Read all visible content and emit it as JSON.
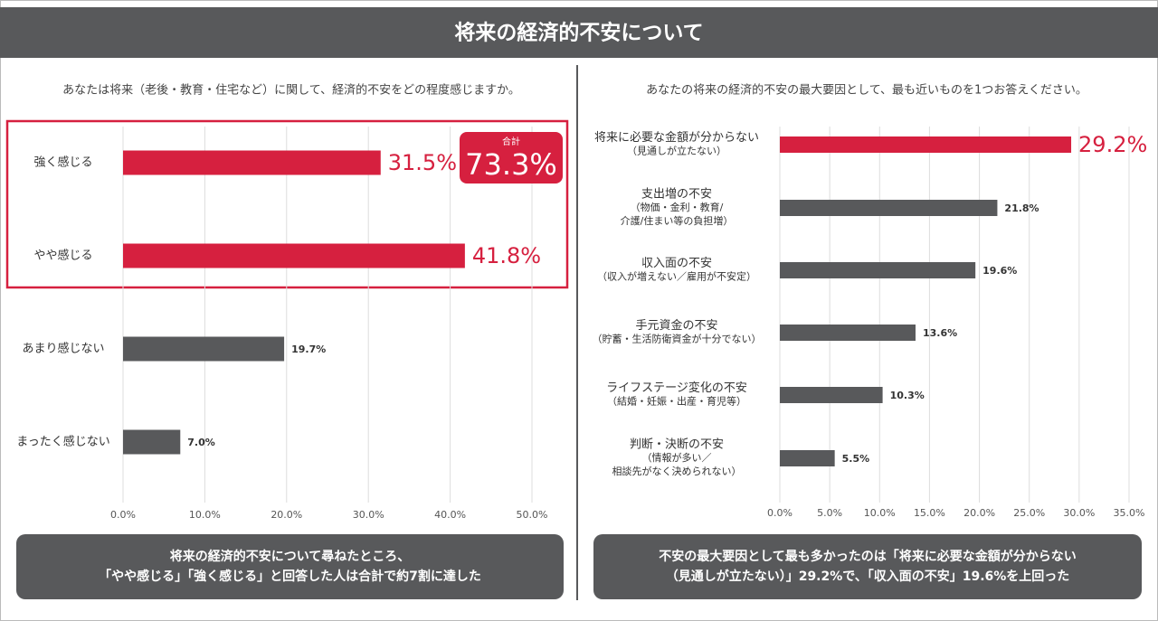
{
  "title": "将来の経済的不安について",
  "chart_data": [
    {
      "type": "bar",
      "orientation": "horizontal",
      "question": "あなたは将来（老後・教育・住宅など）に関して、経済的不安をどの程度感じますか。",
      "categories": [
        [
          "強く感じる"
        ],
        [
          "やや感じる"
        ],
        [
          "あまり感じない"
        ],
        [
          "まったく感じない"
        ]
      ],
      "values": [
        31.5,
        41.8,
        19.7,
        7.0
      ],
      "value_labels": [
        "31.5%",
        "41.8%",
        "19.7%",
        "7.0%"
      ],
      "color": "#58595b",
      "highlight_color": "#d6203f",
      "highlighted": [
        0,
        1
      ],
      "xlim": [
        0,
        50
      ],
      "xticks": [
        {
          "value": 0,
          "label": "0.0%"
        },
        {
          "value": 10,
          "label": "10.0%"
        },
        {
          "value": 20,
          "label": "20.0%"
        },
        {
          "value": 30,
          "label": "30.0%"
        },
        {
          "value": 40,
          "label": "40.0%"
        },
        {
          "value": 50,
          "label": "50.0%"
        }
      ],
      "grid": true,
      "annotation": {
        "label": "合計",
        "text": "73.3%"
      },
      "summary": [
        "将来の経済的不安について尋ねたところ、",
        "「やや感じる」「強く感じる」と回答した人は合計で約7割に達した"
      ]
    },
    {
      "type": "bar",
      "orientation": "horizontal",
      "question": "あなたの将来の経済的不安の最大要因として、最も近いものを1つお答えください。",
      "categories": [
        [
          "将来に必要な金額が分からない",
          "（見通しが立たない）"
        ],
        [
          "支出増の不安",
          "（物価・金利・教育/",
          "介護/住まい等の負担増）"
        ],
        [
          "収入面の不安",
          "（収入が増えない／雇用が不安定）"
        ],
        [
          "手元資金の不安",
          "（貯蓄・生活防衛資金が十分でない）"
        ],
        [
          "ライフステージ変化の不安",
          "（結婚・妊娠・出産・育児等）"
        ],
        [
          "判断・決断の不安",
          "（情報が多い／",
          "相談先がなく決められない）"
        ]
      ],
      "values": [
        29.2,
        21.8,
        19.6,
        13.6,
        10.3,
        5.5
      ],
      "value_labels": [
        "29.2%",
        "21.8%",
        "19.6%",
        "13.6%",
        "10.3%",
        "5.5%"
      ],
      "color": "#58595b",
      "highlight_color": "#d6203f",
      "highlighted": [
        0
      ],
      "xlim": [
        0,
        35
      ],
      "xticks": [
        {
          "value": 0,
          "label": "0.0%"
        },
        {
          "value": 5,
          "label": "5.0%"
        },
        {
          "value": 10,
          "label": "10.0%"
        },
        {
          "value": 15,
          "label": "15.0%"
        },
        {
          "value": 20,
          "label": "20.0%"
        },
        {
          "value": 25,
          "label": "25.0%"
        },
        {
          "value": 30,
          "label": "30.0%"
        },
        {
          "value": 35,
          "label": "35.0%"
        }
      ],
      "grid": true,
      "summary": [
        "不安の最大要因として最も多かったのは「将来に必要な金額が分からない",
        "（見通しが立たない）」29.2%で、「収入面の不安」19.6%を上回った"
      ]
    }
  ]
}
